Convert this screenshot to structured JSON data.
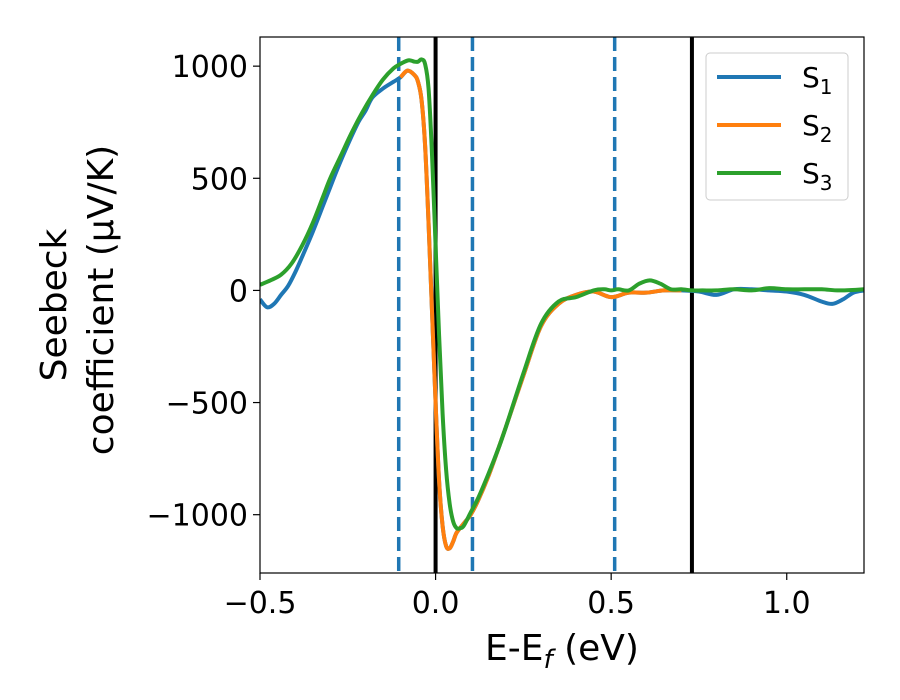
{
  "chart_data": {
    "type": "line",
    "title": "",
    "xlabel": {
      "text": "E-E",
      "sub": "f",
      "suffix": " (eV)"
    },
    "ylabel": {
      "line1": "Seebeck",
      "line2": "coefficient  (μV/K)"
    },
    "xlim": [
      -0.5,
      1.22
    ],
    "ylim": [
      -1260,
      1130
    ],
    "xticks": [
      {
        "value": -0.5,
        "label": "−0.5"
      },
      {
        "value": 0.0,
        "label": "0.0"
      },
      {
        "value": 0.5,
        "label": "0.5"
      },
      {
        "value": 1.0,
        "label": "1.0"
      }
    ],
    "yticks": [
      {
        "value": 1000,
        "label": "1000"
      },
      {
        "value": 500,
        "label": "500"
      },
      {
        "value": 0,
        "label": "0"
      },
      {
        "value": -500,
        "label": "−500"
      },
      {
        "value": -1000,
        "label": "−1000"
      }
    ],
    "grid": false,
    "legend": {
      "placement": "top-right"
    },
    "series": [
      {
        "name": "S",
        "sub": "1",
        "color": "#1f77b4",
        "x": [
          -0.5,
          -0.48,
          -0.46,
          -0.44,
          -0.42,
          -0.4,
          -0.38,
          -0.35,
          -0.32,
          -0.3,
          -0.28,
          -0.25,
          -0.22,
          -0.2,
          -0.18,
          -0.15,
          -0.12,
          -0.1,
          -0.08,
          -0.06,
          -0.05,
          -0.04,
          -0.03,
          -0.02,
          -0.01,
          0.0,
          0.01,
          0.02,
          0.03,
          0.04,
          0.05,
          0.06,
          0.08,
          0.1,
          0.12,
          0.15,
          0.18,
          0.2,
          0.25,
          0.3,
          0.35,
          0.4,
          0.45,
          0.5,
          0.55,
          0.6,
          0.65,
          0.7,
          0.75,
          0.8,
          0.85,
          0.9,
          0.95,
          1.0,
          1.05,
          1.1,
          1.13,
          1.16,
          1.19,
          1.22
        ],
        "y": [
          -40,
          -75,
          -60,
          -20,
          20,
          80,
          150,
          260,
          380,
          460,
          540,
          650,
          750,
          800,
          860,
          900,
          930,
          950,
          980,
          960,
          930,
          850,
          650,
          300,
          -100,
          -500,
          -850,
          -1050,
          -1140,
          -1150,
          -1120,
          -1080,
          -1040,
          -1000,
          -940,
          -830,
          -700,
          -610,
          -380,
          -160,
          -60,
          -20,
          -5,
          -30,
          -10,
          -10,
          0,
          0,
          -5,
          -20,
          5,
          5,
          0,
          -5,
          -20,
          -50,
          -60,
          -40,
          -10,
          0
        ]
      },
      {
        "name": "S",
        "sub": "2",
        "color": "#ff7f0e",
        "x": [
          -0.1,
          -0.08,
          -0.06,
          -0.05,
          -0.04,
          -0.03,
          -0.02,
          -0.01,
          0.0,
          0.01,
          0.02,
          0.03,
          0.04,
          0.05,
          0.06,
          0.08,
          0.1,
          0.12,
          0.15,
          0.18,
          0.2,
          0.25,
          0.3,
          0.35,
          0.4,
          0.45,
          0.5,
          0.55,
          0.6,
          0.65,
          0.7
        ],
        "y": [
          950,
          980,
          960,
          930,
          850,
          650,
          300,
          -100,
          -500,
          -850,
          -1050,
          -1140,
          -1150,
          -1120,
          -1080,
          -1040,
          -1000,
          -940,
          -830,
          -700,
          -610,
          -380,
          -160,
          -60,
          -20,
          -5,
          -30,
          -10,
          -10,
          0,
          0
        ]
      },
      {
        "name": "S",
        "sub": "3",
        "color": "#2ca02c",
        "x": [
          -0.5,
          -0.47,
          -0.44,
          -0.41,
          -0.38,
          -0.35,
          -0.32,
          -0.3,
          -0.27,
          -0.24,
          -0.21,
          -0.18,
          -0.15,
          -0.12,
          -0.1,
          -0.08,
          -0.07,
          -0.06,
          -0.05,
          -0.04,
          -0.03,
          -0.02,
          -0.01,
          0.0,
          0.01,
          0.02,
          0.03,
          0.04,
          0.05,
          0.06,
          0.07,
          0.08,
          0.1,
          0.12,
          0.15,
          0.18,
          0.2,
          0.25,
          0.3,
          0.35,
          0.4,
          0.45,
          0.48,
          0.5,
          0.52,
          0.55,
          0.58,
          0.61,
          0.64,
          0.67,
          0.7,
          0.73,
          0.76,
          0.8,
          0.85,
          0.9,
          0.95,
          1.0,
          1.05,
          1.1,
          1.15,
          1.22
        ],
        "y": [
          25,
          45,
          70,
          120,
          200,
          300,
          420,
          500,
          600,
          700,
          790,
          870,
          940,
          990,
          1010,
          1025,
          1025,
          1020,
          1020,
          1030,
          1010,
          900,
          600,
          200,
          -200,
          -550,
          -800,
          -950,
          -1030,
          -1060,
          -1060,
          -1050,
          -990,
          -930,
          -820,
          -700,
          -610,
          -370,
          -150,
          -50,
          -30,
          0,
          5,
          0,
          5,
          0,
          30,
          45,
          30,
          5,
          5,
          0,
          0,
          0,
          5,
          0,
          10,
          5,
          5,
          5,
          0,
          5
        ]
      }
    ],
    "vertical_lines": [
      {
        "x": -0.105,
        "style": "dashed",
        "color": "#1f77b4"
      },
      {
        "x": 0.0,
        "style": "solid",
        "color": "#000000"
      },
      {
        "x": 0.105,
        "style": "dashed",
        "color": "#1f77b4"
      },
      {
        "x": 0.51,
        "style": "dashed",
        "color": "#1f77b4"
      },
      {
        "x": 0.73,
        "style": "solid",
        "color": "#000000"
      }
    ]
  }
}
